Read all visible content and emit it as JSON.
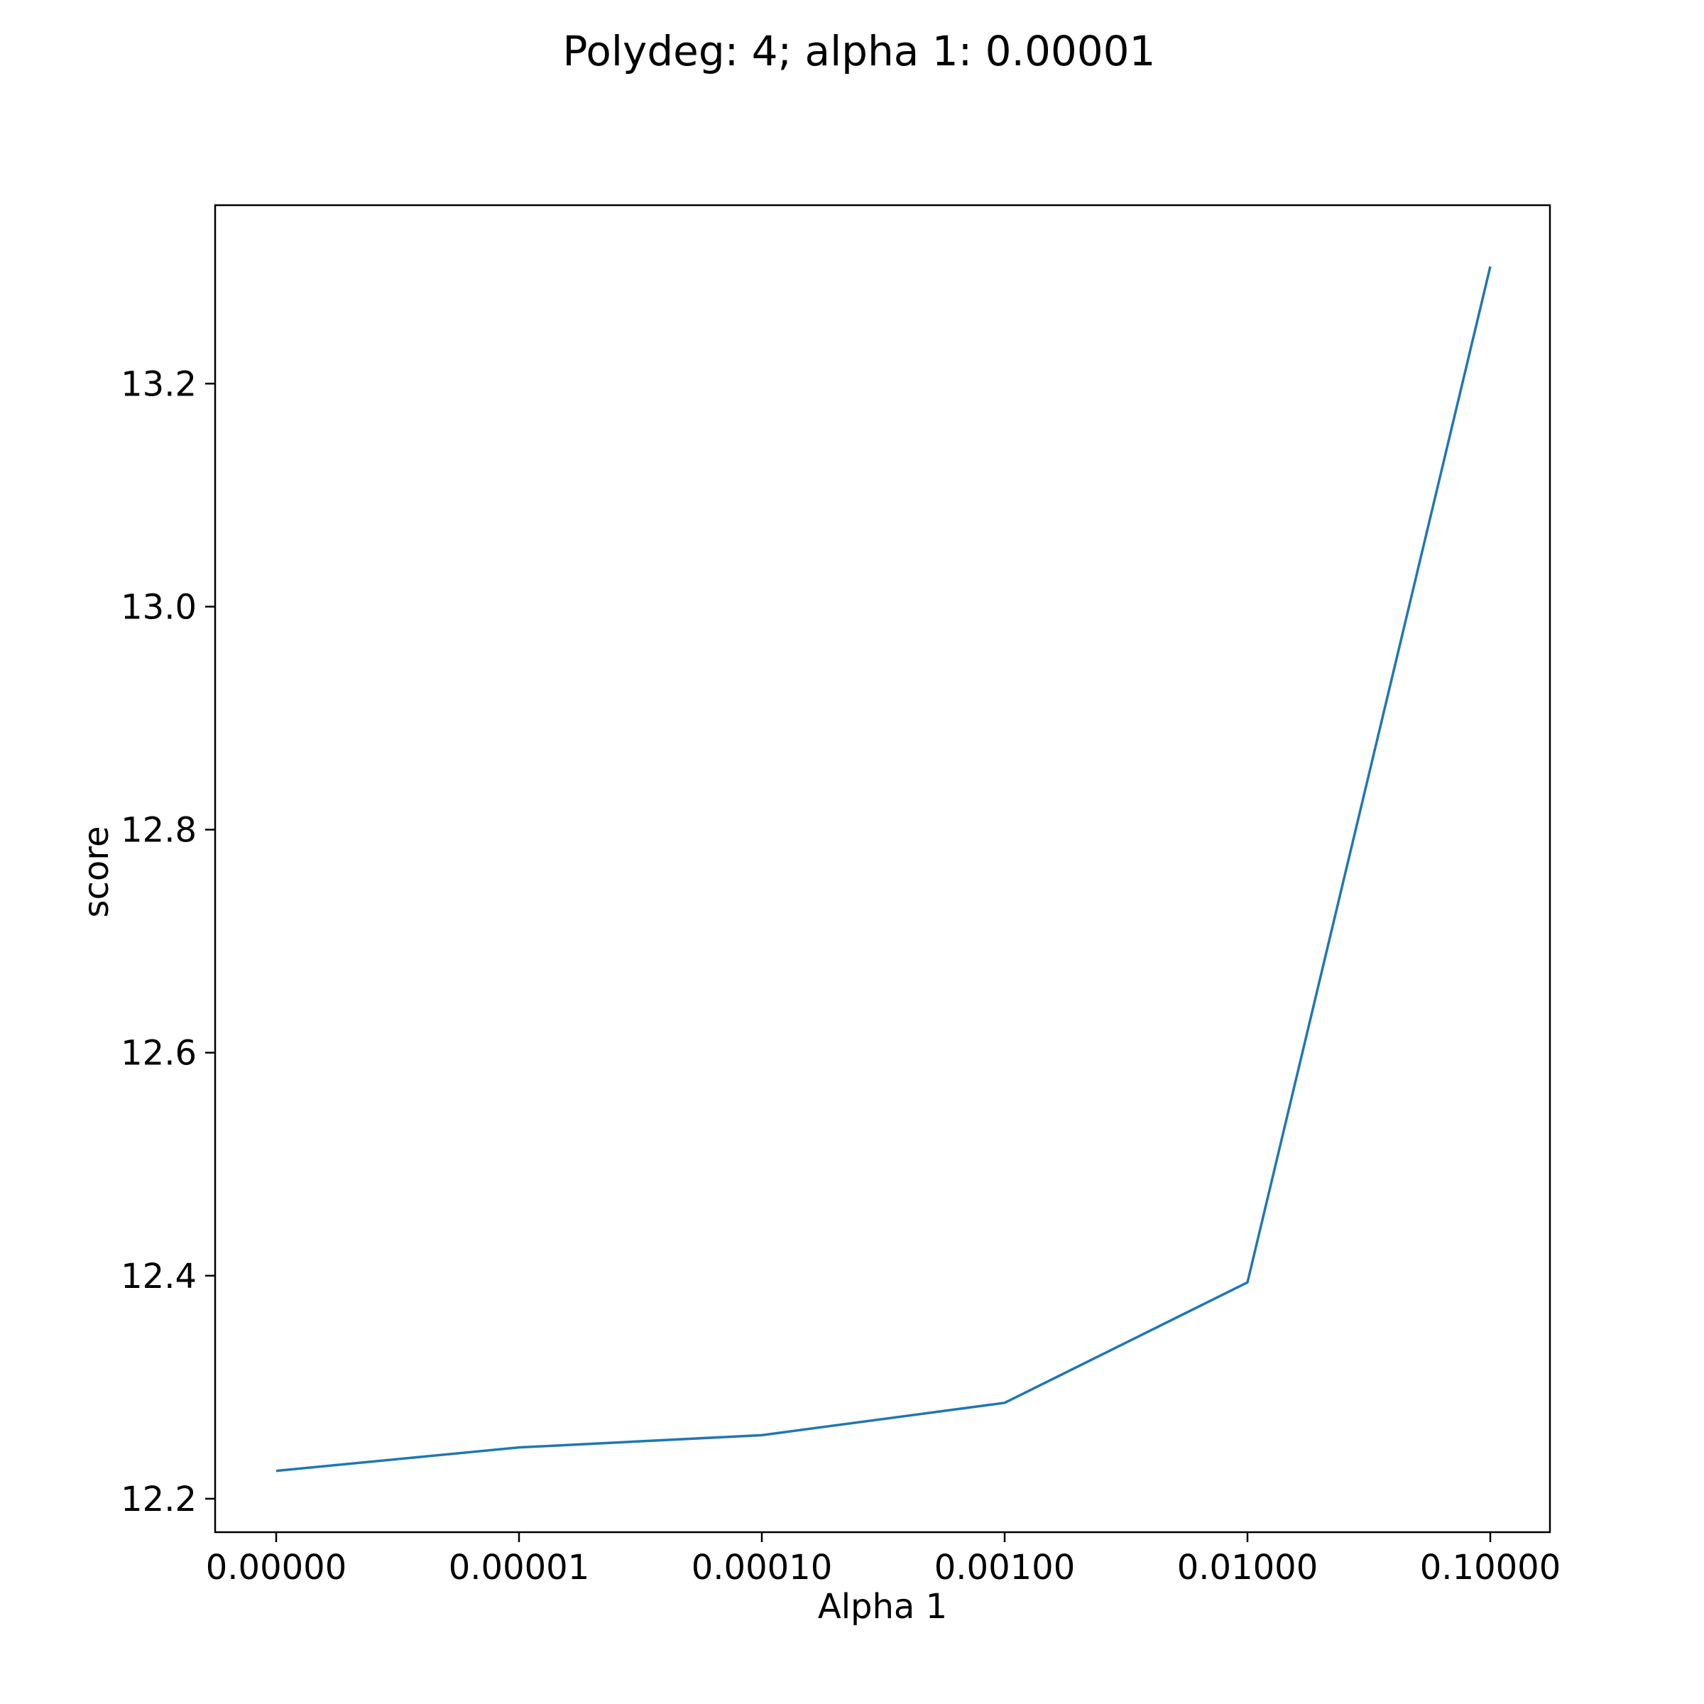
{
  "chart_data": {
    "type": "line",
    "title": "Polydeg: 4; alpha 1: 0.00001",
    "xlabel": "Alpha 1",
    "ylabel": "score",
    "categories": [
      "0.00000",
      "0.00001",
      "0.00010",
      "0.00100",
      "0.01000",
      "0.10000"
    ],
    "yticks": [
      "12.2",
      "12.4",
      "12.6",
      "12.8",
      "13.0",
      "13.2"
    ],
    "ylim": [
      12.17,
      13.36
    ],
    "grid": false,
    "series": [
      {
        "values": [
          12.225,
          12.246,
          12.257,
          12.286,
          12.394,
          13.305
        ],
        "color": "#1f77b4"
      }
    ]
  }
}
